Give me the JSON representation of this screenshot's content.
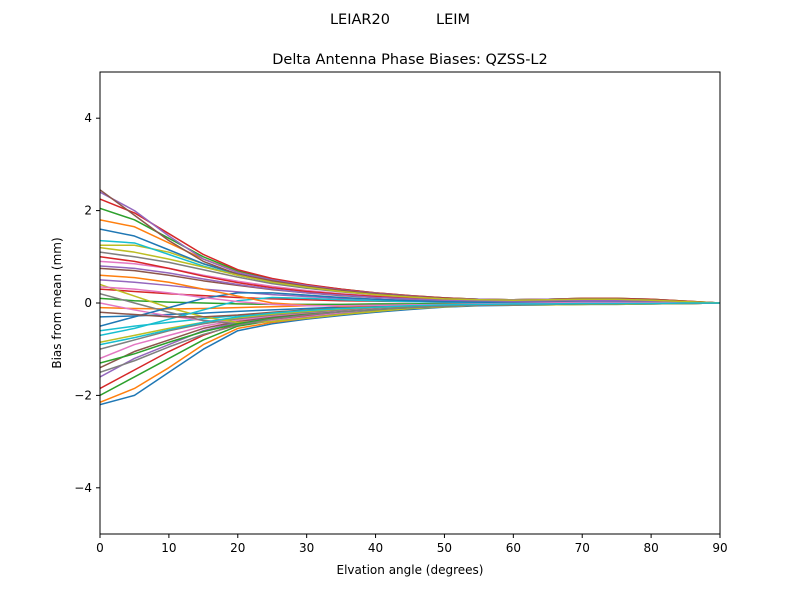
{
  "chart_data": {
    "type": "line",
    "suptitle": "LEIAR20          LEIM",
    "title": "Delta Antenna Phase Biases: QZSS-L2",
    "xlabel": "Elvation angle (degrees)",
    "ylabel": "Bias from mean (mm)",
    "xlim": [
      0,
      90
    ],
    "ylim": [
      -5,
      5
    ],
    "xticks": [
      0,
      10,
      20,
      30,
      40,
      50,
      60,
      70,
      80,
      90
    ],
    "yticks": [
      -4,
      -2,
      0,
      2,
      4
    ],
    "grid": false,
    "legend": "none",
    "colors": [
      "#1f77b4",
      "#ff7f0e",
      "#2ca02c",
      "#d62728",
      "#9467bd",
      "#8c564b",
      "#e377c2",
      "#7f7f7f",
      "#bcbd22",
      "#17becf"
    ],
    "x": [
      0,
      5,
      10,
      15,
      20,
      25,
      30,
      35,
      40,
      45,
      50,
      55,
      60,
      65,
      70,
      75,
      80,
      85,
      90
    ],
    "series": [
      {
        "values": [
          -2.2,
          -2.0,
          -1.5,
          -1.0,
          -0.6,
          -0.45,
          -0.35,
          -0.27,
          -0.2,
          -0.14,
          -0.09,
          -0.06,
          -0.05,
          -0.04,
          -0.03,
          -0.03,
          -0.02,
          -0.01,
          0
        ]
      },
      {
        "values": [
          -2.15,
          -1.85,
          -1.4,
          -0.9,
          -0.55,
          -0.42,
          -0.33,
          -0.25,
          -0.18,
          -0.12,
          -0.08,
          -0.05,
          -0.04,
          -0.03,
          -0.03,
          -0.02,
          -0.02,
          -0.01,
          0
        ]
      },
      {
        "values": [
          -2.0,
          -1.6,
          -1.2,
          -0.8,
          -0.5,
          -0.38,
          -0.3,
          -0.23,
          -0.17,
          -0.11,
          -0.07,
          -0.05,
          -0.04,
          -0.03,
          -0.03,
          -0.02,
          -0.02,
          -0.01,
          0
        ]
      },
      {
        "values": [
          -1.85,
          -1.45,
          -1.05,
          -0.7,
          -0.45,
          -0.35,
          -0.28,
          -0.21,
          -0.15,
          -0.1,
          -0.07,
          -0.05,
          -0.04,
          -0.03,
          -0.02,
          -0.02,
          -0.01,
          -0.01,
          0
        ]
      },
      {
        "values": [
          -1.6,
          -1.2,
          -0.9,
          -0.6,
          -0.42,
          -0.32,
          -0.25,
          -0.19,
          -0.14,
          -0.09,
          -0.06,
          -0.04,
          -0.03,
          -0.02,
          -0.02,
          -0.02,
          -0.01,
          0,
          0
        ]
      },
      {
        "values": [
          -1.4,
          -1.05,
          -0.8,
          -0.55,
          -0.4,
          -0.3,
          -0.23,
          -0.17,
          -0.12,
          -0.08,
          -0.05,
          -0.04,
          -0.03,
          -0.02,
          -0.01,
          -0.01,
          -0.01,
          0,
          0
        ]
      },
      {
        "values": [
          -1.2,
          -0.9,
          -0.7,
          -0.5,
          -0.37,
          -0.28,
          -0.21,
          -0.16,
          -0.11,
          -0.07,
          -0.05,
          -0.03,
          -0.02,
          -0.01,
          0.0,
          0.0,
          0.0,
          0,
          0
        ]
      },
      {
        "values": [
          -1.0,
          -0.8,
          -0.6,
          -0.45,
          -0.34,
          -0.26,
          -0.2,
          -0.15,
          -0.1,
          -0.07,
          -0.04,
          -0.03,
          -0.02,
          -0.01,
          0.01,
          0.01,
          0.0,
          0,
          0
        ]
      },
      {
        "values": [
          -0.85,
          -0.7,
          -0.55,
          -0.42,
          -0.32,
          -0.24,
          -0.18,
          -0.13,
          -0.09,
          -0.06,
          -0.04,
          -0.02,
          -0.01,
          0.0,
          0.02,
          0.02,
          0.01,
          0.0,
          0
        ]
      },
      {
        "values": [
          -0.6,
          -0.5,
          -0.42,
          -0.34,
          -0.27,
          -0.21,
          -0.16,
          -0.12,
          -0.08,
          -0.05,
          -0.03,
          -0.02,
          -0.01,
          0.0,
          0.02,
          0.02,
          0.02,
          0.01,
          0
        ]
      },
      {
        "values": [
          -0.3,
          -0.28,
          -0.25,
          -0.22,
          -0.18,
          -0.15,
          -0.12,
          -0.09,
          -0.07,
          -0.05,
          -0.03,
          -0.02,
          -0.01,
          0.0,
          0.01,
          0.01,
          0.01,
          0.0,
          0
        ]
      },
      {
        "values": [
          -0.1,
          -0.12,
          -0.13,
          -0.12,
          -0.1,
          -0.08,
          -0.06,
          -0.05,
          -0.04,
          -0.03,
          -0.02,
          -0.01,
          0.0,
          0.01,
          0.02,
          0.02,
          0.01,
          0.0,
          0
        ]
      },
      {
        "values": [
          0.1,
          0.05,
          0.02,
          0.0,
          -0.02,
          -0.03,
          -0.03,
          -0.03,
          -0.02,
          -0.02,
          -0.01,
          -0.01,
          0.0,
          0.01,
          0.02,
          0.02,
          0.02,
          0.01,
          0
        ]
      },
      {
        "values": [
          0.3,
          0.25,
          0.2,
          0.16,
          0.12,
          0.09,
          0.07,
          0.05,
          0.04,
          0.03,
          0.02,
          0.01,
          0.01,
          0.02,
          0.03,
          0.03,
          0.02,
          0.01,
          0
        ]
      },
      {
        "values": [
          0.5,
          0.45,
          0.38,
          0.3,
          0.24,
          0.18,
          0.14,
          0.1,
          0.08,
          0.06,
          0.04,
          0.03,
          0.03,
          0.04,
          0.05,
          0.05,
          0.04,
          0.02,
          0
        ]
      },
      {
        "values": [
          0.75,
          0.7,
          0.6,
          0.48,
          0.38,
          0.29,
          0.22,
          0.16,
          0.12,
          0.09,
          0.06,
          0.05,
          0.04,
          0.05,
          0.06,
          0.06,
          0.05,
          0.02,
          0
        ]
      },
      {
        "values": [
          0.9,
          0.85,
          0.75,
          0.6,
          0.47,
          0.36,
          0.27,
          0.2,
          0.15,
          0.11,
          0.08,
          0.06,
          0.05,
          0.06,
          0.07,
          0.07,
          0.06,
          0.03,
          0
        ]
      },
      {
        "values": [
          1.1,
          1.0,
          0.88,
          0.72,
          0.56,
          0.42,
          0.32,
          0.24,
          0.18,
          0.13,
          0.09,
          0.07,
          0.06,
          0.07,
          0.08,
          0.08,
          0.06,
          0.03,
          0
        ]
      },
      {
        "values": [
          1.25,
          1.25,
          1.1,
          0.85,
          0.62,
          0.47,
          0.36,
          0.27,
          0.2,
          0.14,
          0.1,
          0.07,
          0.06,
          0.07,
          0.09,
          0.09,
          0.07,
          0.03,
          0
        ]
      },
      {
        "values": [
          1.35,
          1.3,
          1.05,
          0.8,
          0.6,
          0.45,
          0.34,
          0.26,
          0.19,
          0.14,
          0.1,
          0.07,
          0.06,
          0.07,
          0.08,
          0.08,
          0.07,
          0.03,
          0
        ]
      },
      {
        "values": [
          1.6,
          1.45,
          1.15,
          0.85,
          0.63,
          0.47,
          0.36,
          0.27,
          0.2,
          0.15,
          0.1,
          0.08,
          0.07,
          0.08,
          0.09,
          0.09,
          0.07,
          0.03,
          0
        ]
      },
      {
        "values": [
          1.8,
          1.65,
          1.3,
          0.95,
          0.68,
          0.5,
          0.38,
          0.29,
          0.21,
          0.15,
          0.11,
          0.08,
          0.07,
          0.08,
          0.1,
          0.1,
          0.08,
          0.04,
          0
        ]
      },
      {
        "values": [
          2.05,
          1.8,
          1.4,
          1.0,
          0.7,
          0.52,
          0.39,
          0.3,
          0.22,
          0.16,
          0.11,
          0.08,
          0.07,
          0.08,
          0.1,
          0.1,
          0.08,
          0.04,
          0
        ]
      },
      {
        "values": [
          2.25,
          1.95,
          1.5,
          1.05,
          0.72,
          0.53,
          0.4,
          0.3,
          0.22,
          0.16,
          0.11,
          0.08,
          0.07,
          0.08,
          0.1,
          0.1,
          0.08,
          0.04,
          0
        ]
      },
      {
        "values": [
          2.4,
          2.0,
          1.45,
          0.95,
          0.66,
          0.5,
          0.38,
          0.28,
          0.21,
          0.15,
          0.1,
          0.08,
          0.07,
          0.08,
          0.09,
          0.09,
          0.07,
          0.03,
          0
        ]
      },
      {
        "values": [
          2.45,
          1.9,
          1.35,
          0.9,
          0.62,
          0.48,
          0.36,
          0.27,
          0.2,
          0.14,
          0.1,
          0.07,
          0.06,
          0.07,
          0.09,
          0.09,
          0.07,
          0.03,
          0
        ]
      },
      {
        "values": [
          0.0,
          -0.15,
          -0.28,
          -0.38,
          -0.42,
          -0.38,
          -0.3,
          -0.22,
          -0.15,
          -0.1,
          -0.07,
          -0.05,
          -0.04,
          -0.03,
          -0.02,
          -0.02,
          -0.01,
          -0.01,
          0
        ]
      },
      {
        "values": [
          0.2,
          0.0,
          -0.2,
          -0.38,
          -0.45,
          -0.4,
          -0.32,
          -0.24,
          -0.17,
          -0.11,
          -0.07,
          -0.05,
          -0.04,
          -0.03,
          -0.02,
          -0.02,
          -0.01,
          -0.01,
          0
        ]
      },
      {
        "values": [
          0.4,
          0.15,
          -0.1,
          -0.3,
          -0.42,
          -0.4,
          -0.33,
          -0.25,
          -0.18,
          -0.12,
          -0.08,
          -0.05,
          -0.04,
          -0.04,
          -0.03,
          -0.03,
          -0.02,
          -0.01,
          0
        ]
      },
      {
        "values": [
          -0.7,
          -0.55,
          -0.35,
          -0.15,
          0.05,
          0.12,
          0.1,
          0.07,
          0.05,
          0.03,
          0.02,
          0.01,
          0.0,
          0.0,
          0.01,
          0.01,
          0.01,
          0.0,
          0
        ]
      },
      {
        "values": [
          -0.5,
          -0.3,
          -0.1,
          0.1,
          0.22,
          0.22,
          0.17,
          0.12,
          0.08,
          0.05,
          0.03,
          0.02,
          0.01,
          0.01,
          0.02,
          0.02,
          0.02,
          0.01,
          0
        ]
      },
      {
        "values": [
          0.6,
          0.55,
          0.45,
          0.3,
          0.15,
          0.0,
          -0.05,
          -0.07,
          -0.06,
          -0.05,
          -0.04,
          -0.03,
          -0.02,
          -0.02,
          -0.01,
          -0.01,
          -0.01,
          0,
          0
        ]
      },
      {
        "values": [
          -1.3,
          -1.1,
          -0.85,
          -0.62,
          -0.45,
          -0.33,
          -0.25,
          -0.19,
          -0.14,
          -0.1,
          -0.07,
          -0.05,
          -0.04,
          -0.03,
          -0.02,
          -0.02,
          -0.01,
          -0.01,
          0
        ]
      },
      {
        "values": [
          1.0,
          0.9,
          0.75,
          0.58,
          0.44,
          0.33,
          0.25,
          0.19,
          0.14,
          0.1,
          0.07,
          0.05,
          0.05,
          0.06,
          0.07,
          0.07,
          0.05,
          0.02,
          0
        ]
      },
      {
        "values": [
          0.8,
          0.75,
          0.65,
          0.52,
          0.4,
          0.3,
          0.22,
          0.17,
          0.12,
          0.09,
          0.06,
          0.05,
          0.04,
          0.05,
          0.06,
          0.06,
          0.05,
          0.02,
          0
        ]
      },
      {
        "values": [
          -0.2,
          -0.25,
          -0.3,
          -0.3,
          -0.26,
          -0.2,
          -0.15,
          -0.11,
          -0.08,
          -0.06,
          -0.04,
          -0.03,
          -0.02,
          -0.02,
          -0.01,
          -0.01,
          -0.01,
          0,
          0
        ]
      },
      {
        "values": [
          0.35,
          0.3,
          0.22,
          0.12,
          0.03,
          -0.03,
          -0.06,
          -0.06,
          -0.05,
          -0.04,
          -0.03,
          -0.02,
          -0.01,
          0.0,
          0.01,
          0.01,
          0.01,
          0,
          0
        ]
      },
      {
        "values": [
          -1.5,
          -1.25,
          -0.95,
          -0.68,
          -0.48,
          -0.35,
          -0.26,
          -0.19,
          -0.14,
          -0.1,
          -0.07,
          -0.05,
          -0.04,
          -0.03,
          -0.02,
          -0.02,
          -0.01,
          -0.01,
          0
        ]
      },
      {
        "values": [
          1.2,
          1.1,
          0.95,
          0.78,
          0.6,
          0.45,
          0.34,
          0.25,
          0.18,
          0.13,
          0.09,
          0.07,
          0.06,
          0.07,
          0.08,
          0.08,
          0.06,
          0.03,
          0
        ]
      },
      {
        "values": [
          -0.9,
          -0.75,
          -0.58,
          -0.42,
          -0.3,
          -0.22,
          -0.16,
          -0.12,
          -0.09,
          -0.06,
          -0.04,
          -0.03,
          -0.02,
          -0.02,
          -0.01,
          -0.01,
          -0.01,
          0,
          0
        ]
      }
    ]
  }
}
